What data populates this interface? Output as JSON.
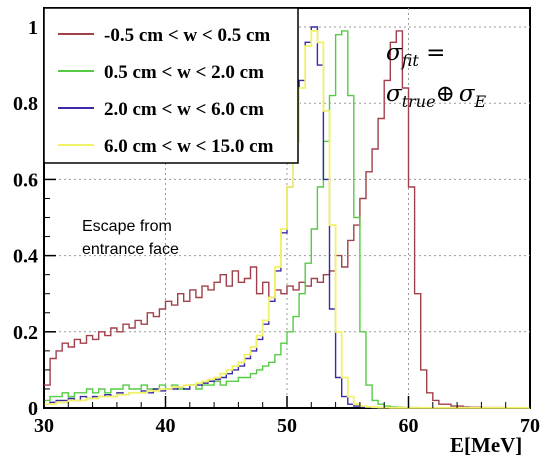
{
  "chart_data": {
    "type": "line",
    "title": "",
    "xlabel": "E[MeV]",
    "ylabel": "",
    "xlim": [
      30,
      70
    ],
    "ylim": [
      0,
      1.05
    ],
    "x_ticks": [
      "30",
      "40",
      "50",
      "60",
      "70"
    ],
    "y_ticks": [
      "0",
      "0.2",
      "0.4",
      "0.6",
      "0.8",
      "1"
    ],
    "legend_position": "top-left",
    "bin_start": 30,
    "bin_width": 0.5,
    "series": [
      {
        "name": "-0.5 cm < w < 0.5 cm",
        "color": "#a0404a",
        "values": [
          0.06,
          0.13,
          0.15,
          0.17,
          0.16,
          0.18,
          0.17,
          0.19,
          0.18,
          0.2,
          0.19,
          0.21,
          0.2,
          0.22,
          0.21,
          0.23,
          0.22,
          0.25,
          0.24,
          0.26,
          0.28,
          0.27,
          0.3,
          0.28,
          0.31,
          0.29,
          0.32,
          0.31,
          0.33,
          0.35,
          0.32,
          0.36,
          0.33,
          0.34,
          0.37,
          0.3,
          0.33,
          0.29,
          0.31,
          0.3,
          0.32,
          0.31,
          0.33,
          0.32,
          0.34,
          0.33,
          0.35,
          0.36,
          0.4,
          0.37,
          0.44,
          0.48,
          0.55,
          0.62,
          0.68,
          0.76,
          0.86,
          0.96,
          0.99,
          0.84,
          0.58,
          0.3,
          0.1,
          0.04,
          0.02,
          0.01,
          0.01,
          0.005,
          0.005,
          0.003,
          0.002,
          0.002,
          0.001,
          0.001,
          0.001,
          0.001,
          0.0005,
          0.0005,
          0.0005,
          0.0005
        ]
      },
      {
        "name": "0.5 cm < w < 2.0 cm",
        "color": "#55cc44",
        "values": [
          0.02,
          0.03,
          0.03,
          0.04,
          0.03,
          0.04,
          0.04,
          0.05,
          0.04,
          0.05,
          0.04,
          0.05,
          0.05,
          0.06,
          0.05,
          0.05,
          0.06,
          0.05,
          0.05,
          0.06,
          0.05,
          0.06,
          0.05,
          0.05,
          0.06,
          0.05,
          0.06,
          0.06,
          0.07,
          0.06,
          0.07,
          0.07,
          0.08,
          0.08,
          0.09,
          0.1,
          0.11,
          0.12,
          0.14,
          0.17,
          0.2,
          0.24,
          0.3,
          0.38,
          0.47,
          0.58,
          0.7,
          0.82,
          0.98,
          0.99,
          0.82,
          0.5,
          0.2,
          0.06,
          0.02,
          0.01,
          0.005,
          0.003,
          0.002,
          0.001,
          0.001,
          0.001,
          0.0005,
          0.0005,
          0.0005,
          0.0005,
          0.0005,
          0.0005,
          0.0005,
          0.0005,
          0.0005,
          0.0005,
          0.0005,
          0.0005,
          0.0005,
          0.0005,
          0.0005,
          0.0005,
          0.0005,
          0.0005
        ]
      },
      {
        "name": "2.0 cm < w < 6.0 cm",
        "color": "#3a2aa8",
        "values": [
          0.01,
          0.015,
          0.02,
          0.02,
          0.025,
          0.02,
          0.03,
          0.025,
          0.03,
          0.03,
          0.035,
          0.03,
          0.04,
          0.035,
          0.04,
          0.04,
          0.045,
          0.04,
          0.05,
          0.045,
          0.05,
          0.05,
          0.055,
          0.05,
          0.06,
          0.06,
          0.065,
          0.07,
          0.075,
          0.08,
          0.09,
          0.1,
          0.11,
          0.13,
          0.15,
          0.18,
          0.22,
          0.28,
          0.36,
          0.46,
          0.58,
          0.72,
          0.86,
          0.96,
          1.0,
          0.9,
          0.6,
          0.26,
          0.08,
          0.03,
          0.01,
          0.005,
          0.003,
          0.002,
          0.001,
          0.001,
          0.0005,
          0.0005,
          0.0005,
          0.0005,
          0.0005,
          0.0005,
          0.0005,
          0.0005,
          0.0005,
          0.0005,
          0.0005,
          0.0005,
          0.0005,
          0.0005,
          0.0005,
          0.0005,
          0.0005,
          0.0005,
          0.0005,
          0.0005,
          0.0005,
          0.0005,
          0.0005,
          0.0005
        ]
      },
      {
        "name": "6.0 cm < w < 15.0 cm",
        "color": "#f2f26a",
        "values": [
          0.01,
          0.01,
          0.015,
          0.015,
          0.02,
          0.02,
          0.02,
          0.025,
          0.025,
          0.03,
          0.03,
          0.03,
          0.035,
          0.035,
          0.04,
          0.04,
          0.04,
          0.045,
          0.045,
          0.05,
          0.05,
          0.055,
          0.055,
          0.06,
          0.06,
          0.065,
          0.07,
          0.075,
          0.08,
          0.09,
          0.1,
          0.11,
          0.12,
          0.14,
          0.16,
          0.19,
          0.23,
          0.29,
          0.37,
          0.47,
          0.58,
          0.7,
          0.84,
          0.95,
          0.99,
          0.96,
          0.78,
          0.48,
          0.2,
          0.08,
          0.03,
          0.01,
          0.005,
          0.003,
          0.002,
          0.001,
          0.001,
          0.0005,
          0.0005,
          0.0005,
          0.0005,
          0.0005,
          0.0005,
          0.0005,
          0.0005,
          0.0005,
          0.0005,
          0.0005,
          0.0005,
          0.0005,
          0.0005,
          0.0005,
          0.0005,
          0.0005,
          0.0005,
          0.0005,
          0.0005,
          0.0005,
          0.0005,
          0.0005
        ]
      }
    ],
    "annotations": {
      "escape_line1": "Escape from",
      "escape_line2": "entrance face",
      "formula_lhs": "σ",
      "formula_lhs_sub": "fit",
      "formula_eq": " =",
      "formula_rhs_a": "σ",
      "formula_rhs_a_sub": "true",
      "formula_op": "⊕",
      "formula_rhs_b": "σ",
      "formula_rhs_b_sub": "E"
    }
  }
}
